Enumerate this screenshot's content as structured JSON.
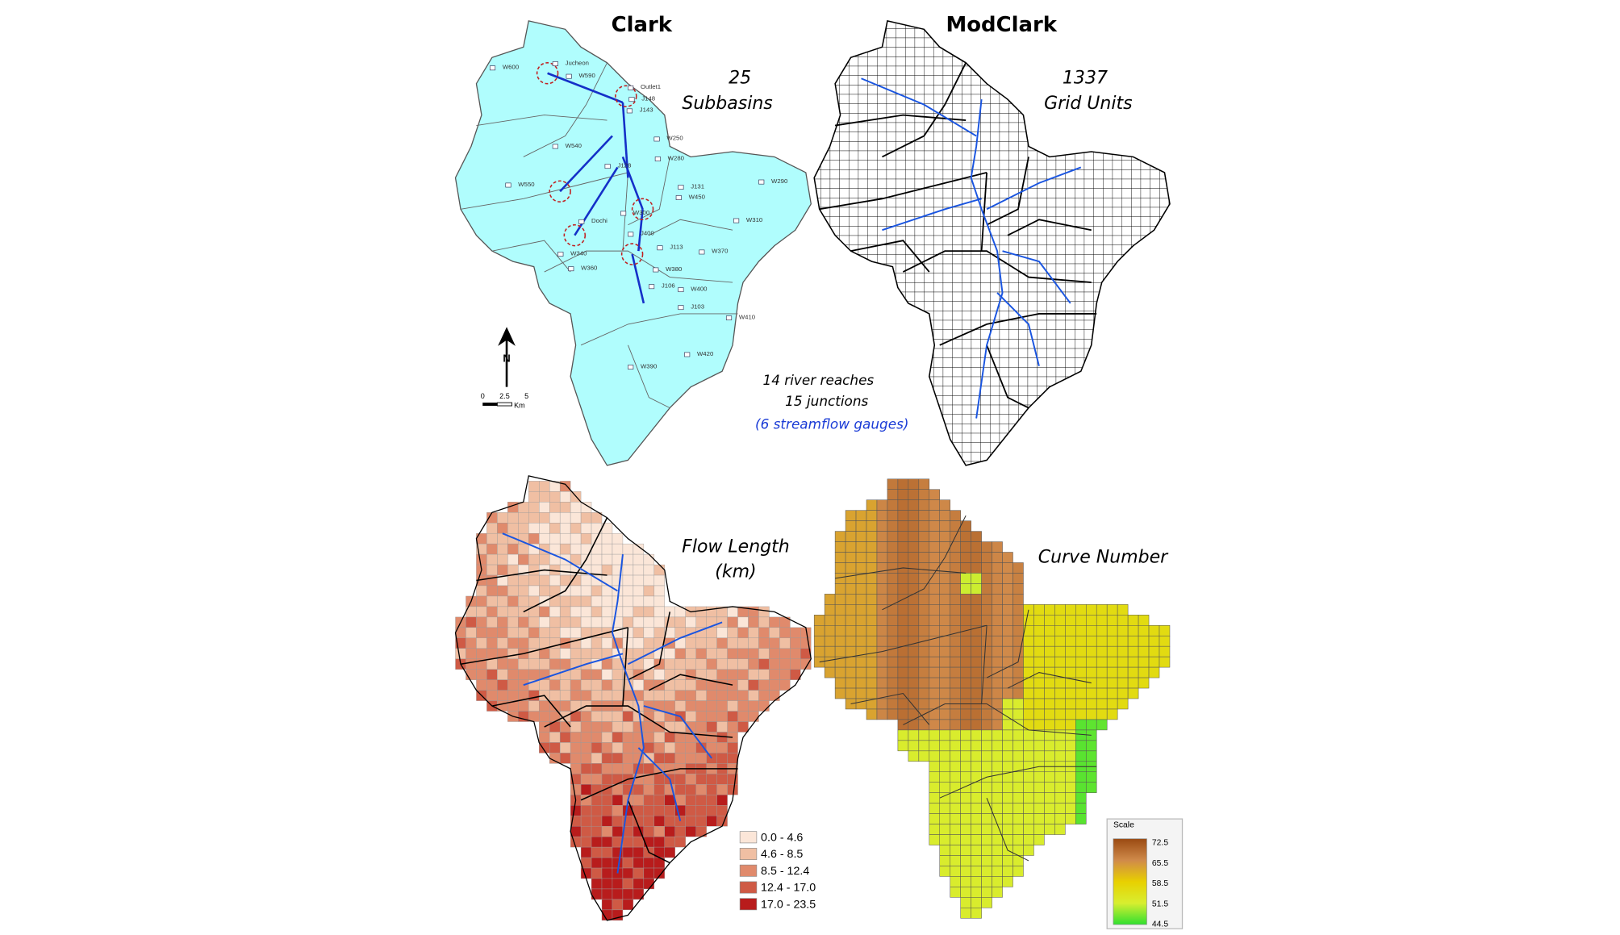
{
  "clark": {
    "title": "Clark",
    "count": 25,
    "count_label": "Subbasins",
    "notes": [
      "14 river reaches",
      "15 junctions",
      "(6 streamflow gauges)"
    ],
    "node_labels": [
      "W600",
      "Jucheon",
      "W590",
      "Outlet1",
      "J148",
      "J143",
      "W250",
      "W540",
      "W280",
      "J128",
      "W550",
      "J131",
      "W450",
      "W290",
      "W300",
      "Dochi",
      "W310",
      "J400",
      "W340",
      "W370",
      "J113",
      "W380",
      "W360",
      "W400",
      "J103",
      "J106",
      "W410",
      "W420",
      "W390"
    ],
    "north": "N",
    "scale_bar": [
      0,
      2.5,
      5,
      "Km"
    ]
  },
  "modclark": {
    "title": "ModClark",
    "count": 1337,
    "count_label": "Grid Units"
  },
  "flow_length": {
    "title": "Flow Length",
    "unit": "(km)",
    "legend": [
      {
        "label": "0.0 - 4.6",
        "color": "#fbe6d8"
      },
      {
        "label": "4.6 - 8.5",
        "color": "#f0bfa3"
      },
      {
        "label": "8.5 - 12.4",
        "color": "#e08a6c"
      },
      {
        "label": "12.4 - 17.0",
        "color": "#cf5a45"
      },
      {
        "label": "17.0 - 23.5",
        "color": "#b81c1c"
      }
    ]
  },
  "curve_number": {
    "title": "Curve Number",
    "scale_title": "Scale",
    "scale_labels": [
      72.5,
      65.5,
      58.5,
      51.5,
      44.5
    ],
    "scale_colors": [
      "#9a4a12",
      "#d08a4a",
      "#e8d000",
      "#d8ee30",
      "#30e030"
    ]
  }
}
